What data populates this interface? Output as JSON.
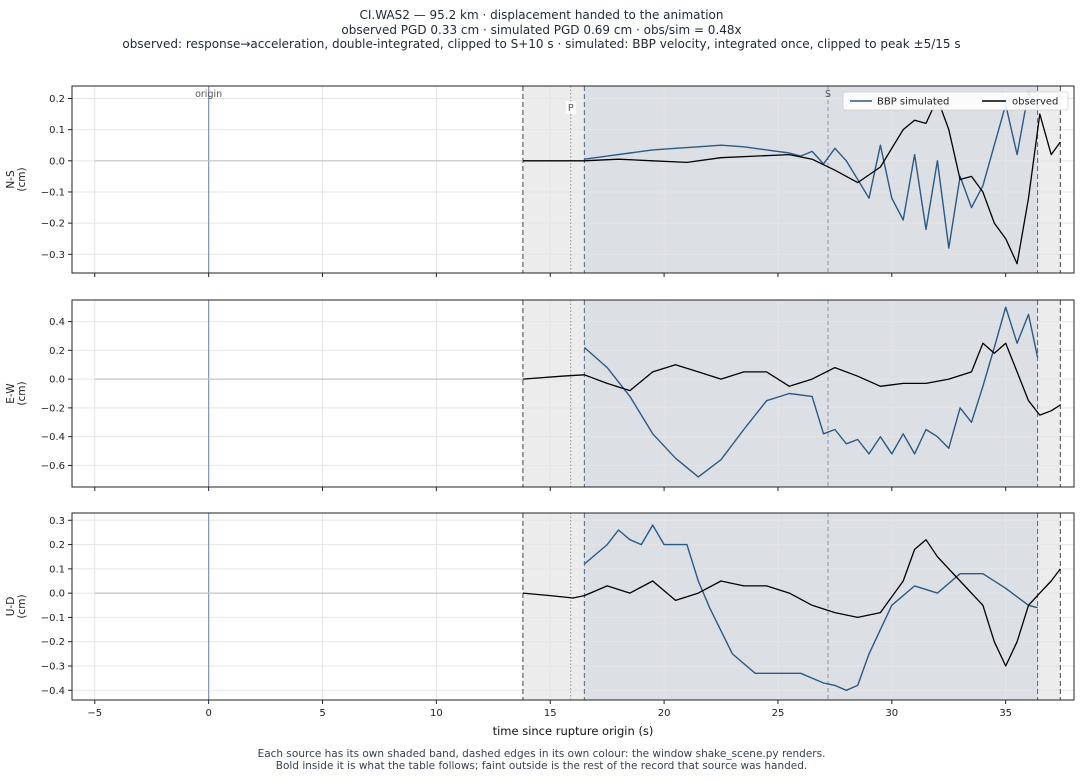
{
  "header": {
    "title_line1": "CI.WAS2  —  95.2 km   ·   displacement handed to the animation",
    "title_line2": "observed PGD 0.33 cm   ·   simulated PGD 0.69 cm   ·   obs/sim = 0.48x",
    "title_line3": "observed: response→acceleration, double-integrated, clipped to S+10 s   ·   simulated: BBP velocity, integrated once, clipped to peak ±5/15 s"
  },
  "footer": {
    "caption_line1": "Each source has its own shaded band, dashed edges in its own colour: the window shake_scene.py renders.",
    "caption_line2": "Bold inside it is what the table follows;   faint outside is the rest of the record that source was handed."
  },
  "colors": {
    "simulated": "#2b5a85",
    "observed": "#000000",
    "origin_line": "#8892b0",
    "obs_band": "#ececec",
    "sim_band": "#dcdfe4",
    "grid": "#e5e5e5",
    "faint": "#c4c4c4"
  },
  "chart_data": {
    "type": "line",
    "xlabel": "time since rupture origin (s)",
    "xlim": [
      -6,
      38
    ],
    "xticks": [
      -5,
      0,
      5,
      10,
      15,
      20,
      25,
      30,
      35
    ],
    "legend": {
      "placement": "top-right",
      "entries": [
        "BBP simulated",
        "observed"
      ]
    },
    "markers": [
      {
        "label": "origin",
        "t": 0
      },
      {
        "label": "P",
        "t": 15.9
      },
      {
        "label": "S",
        "t": 27.2
      }
    ],
    "observed_window": [
      13.8,
      37.4
    ],
    "simulated_window": [
      16.5,
      36.4
    ],
    "panels": [
      {
        "ylabel": "N-S\n(cm)",
        "ylim": [
          -0.36,
          0.24
        ],
        "yticks": [
          -0.3,
          -0.2,
          -0.1,
          0.0,
          0.1,
          0.2
        ],
        "series": [
          {
            "name": "BBP simulated",
            "t": [
              16.5,
              17.5,
              18.5,
              19.5,
              20.5,
              21.5,
              22.5,
              23.5,
              24.5,
              25.5,
              26.0,
              26.5,
              27.0,
              27.5,
              28.0,
              28.5,
              29.0,
              29.5,
              30.0,
              30.5,
              31.0,
              31.5,
              32.0,
              32.5,
              33.0,
              33.5,
              34.0,
              34.5,
              35.0,
              35.5,
              36.0,
              36.4
            ],
            "values": [
              0.005,
              0.015,
              0.025,
              0.035,
              0.04,
              0.045,
              0.05,
              0.045,
              0.035,
              0.025,
              0.015,
              0.03,
              -0.01,
              0.04,
              0.0,
              -0.06,
              -0.12,
              0.05,
              -0.12,
              -0.19,
              0.02,
              -0.22,
              0.0,
              -0.28,
              -0.05,
              -0.15,
              -0.08,
              0.05,
              0.18,
              0.02,
              0.22,
              0.17
            ]
          },
          {
            "name": "observed",
            "t": [
              13.8,
              15.0,
              16.5,
              18.0,
              19.5,
              21.0,
              22.5,
              24.0,
              25.5,
              26.5,
              27.5,
              28.5,
              29.5,
              30.5,
              31.0,
              31.5,
              32.0,
              32.5,
              33.0,
              33.5,
              34.0,
              34.5,
              35.0,
              35.5,
              36.0,
              36.5,
              37.0,
              37.4
            ],
            "values": [
              0.0,
              0.0,
              0.0,
              0.005,
              0.0,
              -0.005,
              0.01,
              0.015,
              0.02,
              0.005,
              -0.03,
              -0.07,
              -0.02,
              0.1,
              0.13,
              0.12,
              0.2,
              0.1,
              -0.06,
              -0.05,
              -0.1,
              -0.2,
              -0.25,
              -0.33,
              -0.12,
              0.15,
              0.02,
              0.06
            ]
          }
        ],
        "faint_pre_t": [
          -5,
          13.8
        ],
        "faint_pre_values": [
          0.0,
          0.0
        ]
      },
      {
        "ylabel": "E-W\n(cm)",
        "ylim": [
          -0.75,
          0.55
        ],
        "yticks": [
          -0.6,
          -0.4,
          -0.2,
          0.0,
          0.2,
          0.4
        ],
        "series": [
          {
            "name": "BBP simulated",
            "t": [
              16.5,
              17.5,
              18.5,
              19.5,
              20.5,
              21.5,
              22.5,
              23.5,
              24.5,
              25.5,
              26.5,
              27.0,
              27.5,
              28.0,
              28.5,
              29.0,
              29.5,
              30.0,
              30.5,
              31.0,
              31.5,
              32.0,
              32.5,
              33.0,
              33.5,
              34.0,
              34.5,
              35.0,
              35.5,
              36.0,
              36.4
            ],
            "values": [
              0.22,
              0.08,
              -0.12,
              -0.38,
              -0.55,
              -0.68,
              -0.56,
              -0.35,
              -0.15,
              -0.1,
              -0.12,
              -0.38,
              -0.35,
              -0.45,
              -0.42,
              -0.52,
              -0.4,
              -0.52,
              -0.38,
              -0.52,
              -0.35,
              -0.4,
              -0.48,
              -0.2,
              -0.3,
              -0.05,
              0.22,
              0.5,
              0.25,
              0.45,
              0.15
            ]
          },
          {
            "name": "observed",
            "t": [
              13.8,
              15.5,
              16.5,
              17.5,
              18.5,
              19.5,
              20.5,
              21.5,
              22.5,
              23.5,
              24.5,
              25.5,
              26.5,
              27.5,
              28.5,
              29.5,
              30.5,
              31.5,
              32.5,
              33.5,
              34.0,
              34.5,
              35.0,
              35.5,
              36.0,
              36.5,
              37.0,
              37.4
            ],
            "values": [
              0.0,
              0.02,
              0.03,
              -0.03,
              -0.08,
              0.05,
              0.1,
              0.05,
              0.0,
              0.05,
              0.05,
              -0.05,
              0.0,
              0.08,
              0.02,
              -0.05,
              -0.03,
              -0.03,
              0.0,
              0.05,
              0.25,
              0.18,
              0.25,
              0.05,
              -0.15,
              -0.25,
              -0.22,
              -0.18
            ]
          }
        ],
        "faint_pre_t": [
          -5,
          13.8
        ],
        "faint_pre_values": [
          0.0,
          0.0
        ]
      },
      {
        "ylabel": "U-D\n(cm)",
        "ylim": [
          -0.44,
          0.33
        ],
        "yticks": [
          -0.4,
          -0.3,
          -0.2,
          -0.1,
          0.0,
          0.1,
          0.2,
          0.3
        ],
        "series": [
          {
            "name": "BBP simulated",
            "t": [
              16.5,
              17.5,
              18.0,
              18.5,
              19.0,
              19.5,
              20.0,
              20.5,
              21.0,
              21.5,
              22.0,
              23.0,
              24.0,
              25.0,
              26.0,
              26.5,
              27.0,
              27.5,
              28.0,
              28.5,
              29.0,
              29.5,
              30.0,
              31.0,
              32.0,
              33.0,
              34.0,
              35.0,
              36.0,
              36.4
            ],
            "values": [
              0.12,
              0.2,
              0.26,
              0.22,
              0.2,
              0.28,
              0.2,
              0.2,
              0.2,
              0.05,
              -0.06,
              -0.25,
              -0.33,
              -0.33,
              -0.33,
              -0.35,
              -0.37,
              -0.38,
              -0.4,
              -0.38,
              -0.25,
              -0.15,
              -0.05,
              0.03,
              0.0,
              0.08,
              0.08,
              0.02,
              -0.05,
              -0.06
            ]
          },
          {
            "name": "observed",
            "t": [
              13.8,
              15.0,
              16.0,
              16.5,
              17.5,
              18.5,
              19.5,
              20.5,
              21.5,
              22.5,
              23.5,
              24.5,
              25.5,
              26.5,
              27.5,
              28.5,
              29.5,
              30.5,
              31.0,
              31.5,
              32.0,
              33.0,
              34.0,
              34.5,
              35.0,
              35.5,
              36.0,
              36.5,
              37.0,
              37.4
            ],
            "values": [
              0.0,
              -0.01,
              -0.02,
              -0.01,
              0.03,
              0.0,
              0.05,
              -0.03,
              0.0,
              0.05,
              0.03,
              0.03,
              0.0,
              -0.05,
              -0.08,
              -0.1,
              -0.08,
              0.05,
              0.18,
              0.22,
              0.15,
              0.05,
              -0.05,
              -0.2,
              -0.3,
              -0.2,
              -0.05,
              0.0,
              0.05,
              0.1
            ]
          }
        ],
        "faint_pre_t": [
          -5,
          13.8
        ],
        "faint_pre_values": [
          0.0,
          0.0
        ]
      }
    ]
  }
}
